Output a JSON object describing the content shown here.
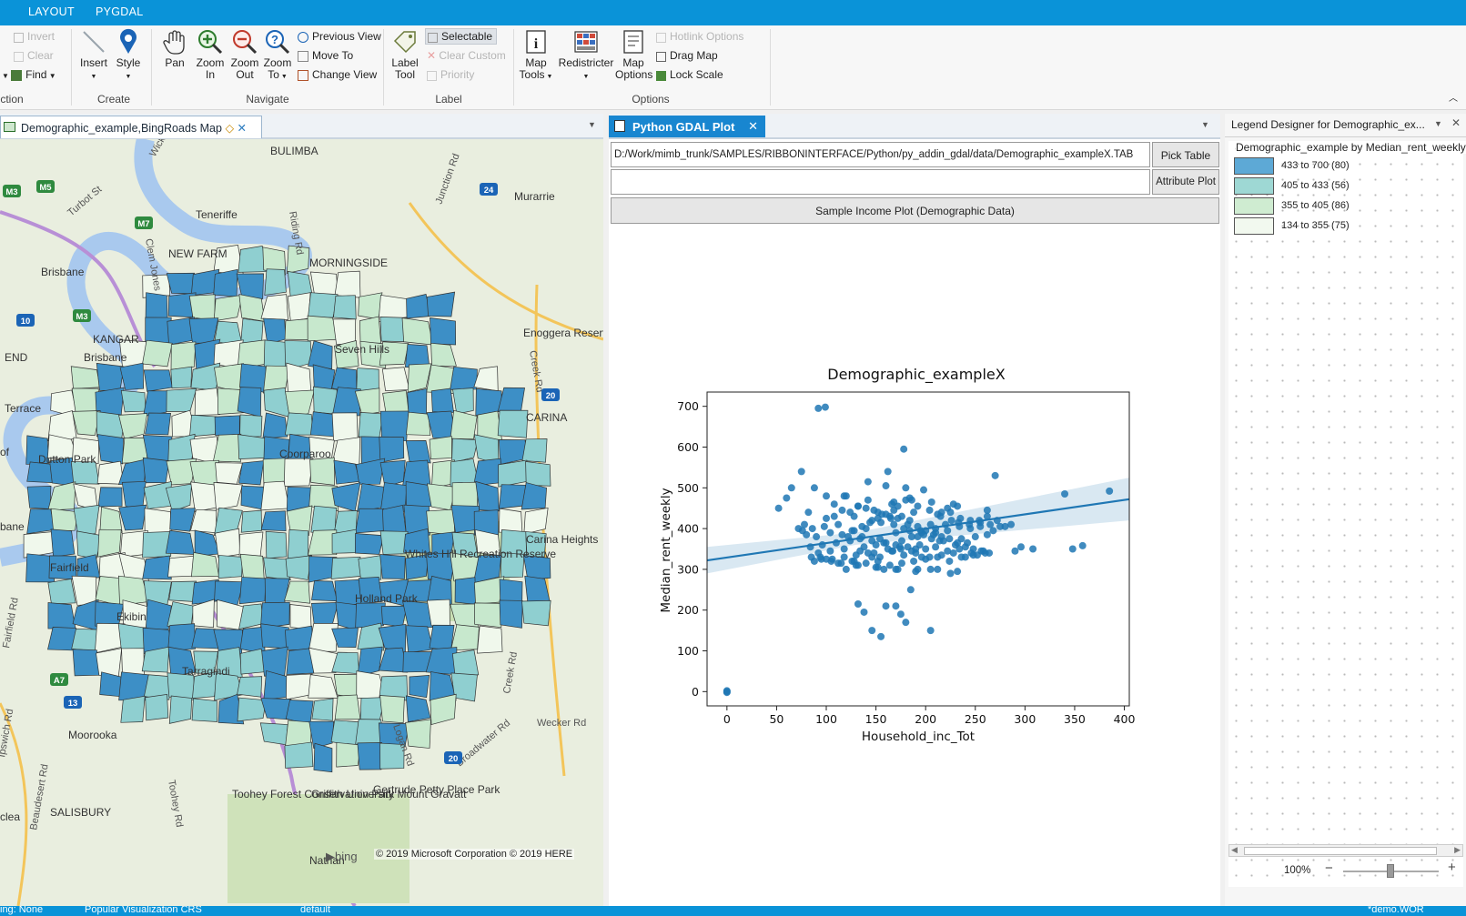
{
  "ribbon_tabs": [
    "LAYOUT",
    "PYGDAL"
  ],
  "ribbon": {
    "selection": {
      "invert": "Invert",
      "clear": "Clear",
      "find": "Find",
      "group_label": "ction"
    },
    "create": {
      "insert": "Insert",
      "style": "Style",
      "group_label": "Create"
    },
    "navigate": {
      "pan": "Pan",
      "zoom_in": [
        "Zoom",
        "In"
      ],
      "zoom_out": [
        "Zoom",
        "Out"
      ],
      "zoom_to": [
        "Zoom",
        "To"
      ],
      "previous_view": "Previous View",
      "move_to": "Move To",
      "change_view": "Change View",
      "group_label": "Navigate"
    },
    "label": {
      "label_tool": [
        "Label",
        "Tool"
      ],
      "selectable": "Selectable",
      "clear_custom": "Clear Custom",
      "priority": "Priority",
      "group_label": "Label"
    },
    "options": {
      "map_tools": [
        "Map",
        "Tools"
      ],
      "redistricter": "Redistricter",
      "map_options": [
        "Map",
        "Options"
      ],
      "hotlink_options": "Hotlink Options",
      "drag_map": "Drag Map",
      "lock_scale": "Lock Scale",
      "group_label": "Options"
    }
  },
  "map_window": {
    "tab_title": "Demographic_example,BingRoads Map",
    "copyright": "© 2019 Microsoft Corporation © 2019 HERE",
    "bing": "bing",
    "place_labels": [
      "BULIMBA",
      "Murarrie",
      "Teneriffe",
      "Brisbane",
      "NEW FARM",
      "MORNINGSIDE",
      "Enoggera Reserve",
      "CARINA",
      "Dutton Park",
      "Coorparoo",
      "Carina Heights",
      "Whites Hill Recreation Reserve",
      "Holland Park",
      "Fairfield",
      "Moorooka",
      "SALISBURY",
      "Toohey Forest Conservation Park",
      "Griffith University Mount Gravatt",
      "Gertrude Petty Place Park",
      "Nathan",
      "KANGAR",
      "Brisbane",
      "END",
      "Terrace",
      "of",
      "bane",
      "clea",
      "Seven Hills",
      "Tarragindi",
      "Ekibin"
    ],
    "road_labels": [
      "Wickham St",
      "Turbot St",
      "Clem Jones",
      "Junction Rd",
      "Riding Rd",
      "Creek Rd",
      "Logan Rd",
      "Fairfield Rd",
      "Ipswich Rd",
      "Beaudesert Rd",
      "Toohey Rd",
      "Wecker Rd",
      "Broadwater Rd",
      "Creek Rd"
    ],
    "shield_labels": [
      "M3",
      "M5",
      "M7",
      "M3",
      "10",
      "24",
      "20",
      "20",
      "13",
      "A7"
    ]
  },
  "plot_window": {
    "tab_title": "Python GDAL Plot",
    "path": "D:/Work/mimb_trunk/SAMPLES/RIBBONINTERFACE/Python/py_addin_gdal/data/Demographic_exampleX.TAB",
    "pick_table": "Pick Table",
    "attribute_plot": "Attribute Plot",
    "sample_button": "Sample Income Plot (Demographic Data)"
  },
  "chart_data": {
    "type": "scatter",
    "title": "Demographic_exampleX",
    "xlabel": "Household_inc_Tot",
    "ylabel": "Median_rent_weekly",
    "xlim": [
      -20,
      405
    ],
    "ylim": [
      -35,
      735
    ],
    "xticks": [
      0,
      50,
      100,
      150,
      200,
      250,
      300,
      350,
      400
    ],
    "yticks": [
      0,
      100,
      200,
      300,
      400,
      500,
      600,
      700
    ],
    "color": "#1f77b4",
    "regression": {
      "x": [
        -20,
        405
      ],
      "y": [
        322,
        472
      ],
      "ci_upper": [
        355,
        525
      ],
      "ci_lower": [
        290,
        420
      ]
    },
    "x": [
      0,
      0,
      0,
      92,
      99,
      178,
      75,
      162,
      270,
      340,
      385,
      348,
      358,
      290,
      308,
      296,
      52,
      60,
      65,
      88,
      100,
      118,
      142,
      160,
      180,
      198,
      228,
      222,
      186,
      172,
      152,
      132,
      108,
      82,
      128,
      146,
      165,
      188,
      212,
      226,
      182,
      178,
      195,
      205,
      268,
      255,
      245,
      233,
      220,
      210,
      196,
      184,
      168,
      155,
      140,
      126,
      112,
      98,
      86,
      78,
      76,
      72,
      80,
      90,
      104,
      116,
      136,
      154,
      170,
      192,
      214,
      236,
      250,
      262,
      242,
      230,
      218,
      206,
      194,
      176,
      160,
      150,
      138,
      124,
      110,
      96,
      84,
      92,
      104,
      118,
      134,
      148,
      162,
      174,
      186,
      200,
      210,
      222,
      234,
      246,
      258,
      252,
      240,
      228,
      216,
      204,
      190,
      178,
      166,
      154,
      142,
      130,
      118,
      106,
      94,
      88,
      100,
      112,
      126,
      140,
      152,
      164,
      176,
      188,
      200,
      212,
      224,
      236,
      248,
      260,
      172,
      164,
      156,
      148,
      140,
      132,
      124,
      116,
      108,
      100,
      168,
      180,
      192,
      204,
      216,
      186,
      198,
      210,
      222,
      234,
      244,
      254,
      262,
      272,
      280,
      190,
      182,
      170,
      158,
      146,
      134,
      122,
      128,
      136,
      144,
      152,
      160,
      168,
      176,
      184,
      192,
      200,
      208,
      216,
      224,
      232,
      240,
      248,
      256,
      264,
      120,
      142,
      166,
      184,
      206,
      232,
      262,
      286,
      215,
      225,
      235,
      245,
      255,
      265,
      275,
      120,
      130,
      150,
      170,
      190,
      205,
      85,
      95,
      105,
      115,
      132,
      152,
      172,
      192,
      212,
      232,
      146,
      138,
      132,
      160,
      185,
      155,
      170,
      175,
      180,
      205,
      128,
      146,
      158,
      167,
      175,
      196,
      225
    ],
    "y": [
      0,
      2,
      -2,
      695,
      698,
      595,
      540,
      540,
      530,
      485,
      492,
      350,
      358,
      345,
      350,
      355,
      450,
      475,
      500,
      500,
      480,
      480,
      515,
      505,
      500,
      495,
      460,
      450,
      470,
      455,
      440,
      455,
      460,
      440,
      430,
      420,
      425,
      440,
      435,
      420,
      410,
      400,
      395,
      410,
      395,
      405,
      400,
      415,
      410,
      400,
      390,
      395,
      410,
      415,
      400,
      395,
      410,
      405,
      400,
      410,
      395,
      400,
      385,
      380,
      390,
      385,
      380,
      375,
      390,
      380,
      370,
      375,
      380,
      385,
      365,
      360,
      370,
      375,
      360,
      370,
      365,
      360,
      355,
      370,
      365,
      360,
      355,
      340,
      345,
      350,
      345,
      340,
      350,
      355,
      345,
      350,
      355,
      345,
      350,
      340,
      345,
      335,
      330,
      340,
      335,
      330,
      340,
      335,
      345,
      330,
      340,
      335,
      330,
      325,
      330,
      320,
      325,
      315,
      320,
      315,
      320,
      310,
      315,
      320,
      325,
      330,
      320,
      330,
      335,
      340,
      425,
      430,
      435,
      445,
      450,
      455,
      440,
      445,
      430,
      425,
      465,
      470,
      455,
      445,
      440,
      380,
      385,
      390,
      395,
      405,
      410,
      420,
      430,
      420,
      405,
      350,
      355,
      360,
      365,
      370,
      375,
      380,
      395,
      405,
      415,
      425,
      435,
      445,
      430,
      420,
      405,
      395,
      385,
      380,
      375,
      365,
      355,
      350,
      345,
      340,
      480,
      470,
      460,
      475,
      465,
      455,
      445,
      410,
      430,
      440,
      425,
      420,
      415,
      410,
      405,
      300,
      310,
      305,
      300,
      295,
      300,
      330,
      325,
      320,
      315,
      310,
      305,
      300,
      300,
      300,
      295,
      150,
      195,
      215,
      210,
      250,
      135,
      210,
      190,
      170,
      150,
      320,
      330,
      300,
      345,
      350,
      330,
      290
    ]
  },
  "legend": {
    "title": "Legend Designer for Demographic_ex...",
    "subtitle": "Demographic_example by Median_rent_weekly",
    "items": [
      {
        "from": "433",
        "to": "700",
        "count": "(80)",
        "color": "#5da9d6"
      },
      {
        "from": "405",
        "to": "433",
        "count": "(56)",
        "color": "#9ed8d4"
      },
      {
        "from": "355",
        "to": "405",
        "count": "(86)",
        "color": "#cfecd1"
      },
      {
        "from": "134",
        "to": "355",
        "count": "(75)",
        "color": "#f2f9ef"
      }
    ],
    "zoom": "100%"
  },
  "status": {
    "left": "ing: None",
    "middle": "Popular Visualization CRS",
    "right_mid": "default",
    "right": "*demo.WOR"
  },
  "colors": {
    "accent": "#0a93d8",
    "choropleth": [
      "#3d8fc6",
      "#8fcfd0",
      "#c7e8cd",
      "#f0f8ec"
    ]
  }
}
